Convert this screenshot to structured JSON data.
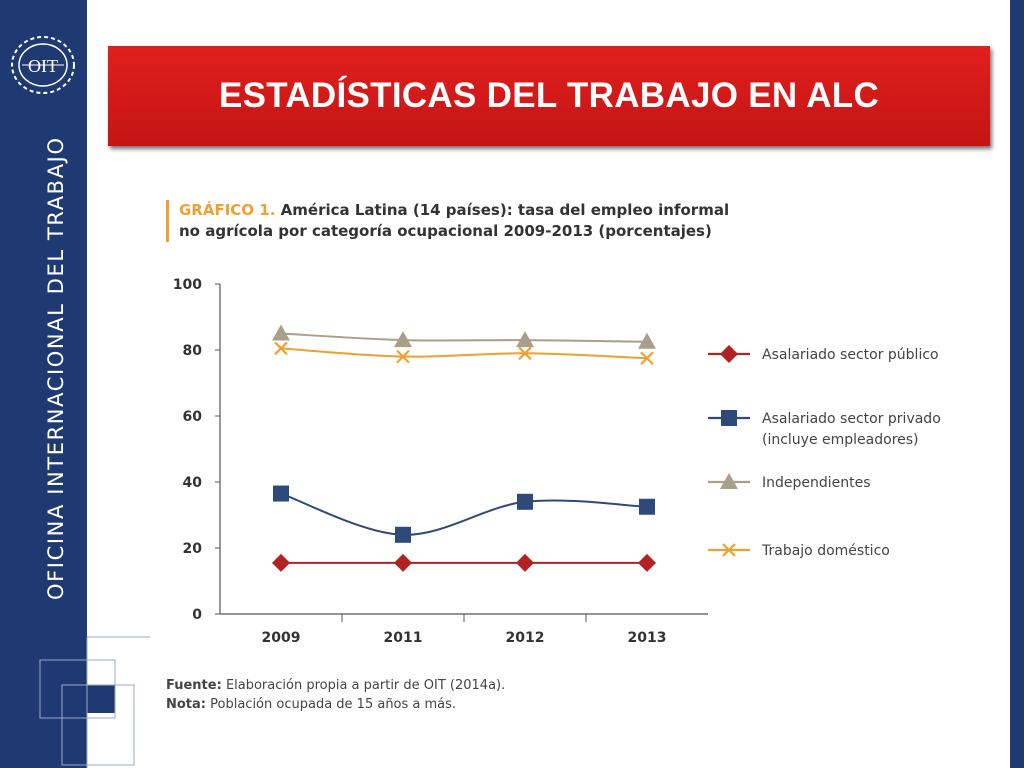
{
  "sidebar": {
    "vertical_text": "OFICINA INTERNACIONAL DEL TRABAJO",
    "logo_text": "OIT"
  },
  "colors": {
    "sidebar": "#1f3a72",
    "banner": "#d41b18",
    "accent": "#f0a030"
  },
  "title": "ESTADÍSTICAS DEL TRABAJO EN ALC",
  "chart_heading": {
    "label": "GRÁFICO 1.",
    "line1": "América Latina (14 países): tasa del empleo informal",
    "line2": "no agrícola por categoría ocupacional 2009-2013 (porcentajes)"
  },
  "footnotes": {
    "source_label": "Fuente:",
    "source_text": "Elaboración propia a partir de OIT (2014a).",
    "note_label": "Nota:",
    "note_text": "Población ocupada de 15 años a más."
  },
  "chart_data": {
    "type": "line",
    "x": [
      "2009",
      "2011",
      "2012",
      "2013"
    ],
    "ylim": [
      0,
      100
    ],
    "yticks": [
      0,
      20,
      40,
      60,
      80,
      100
    ],
    "grid": false,
    "legend_position": "right",
    "series": [
      {
        "name": "Asalariado sector público",
        "name_lines": [
          "Asalariado sector público"
        ],
        "values": [
          15.5,
          15.5,
          15.5,
          15.5
        ],
        "color": "#b22222",
        "marker": "diamond"
      },
      {
        "name": "Asalariado sector privado (incluye empleadores)",
        "name_lines": [
          "Asalariado sector privado",
          "(incluye empleadores)"
        ],
        "values": [
          36.5,
          24,
          34,
          32.5
        ],
        "color": "#2e4a7a",
        "marker": "square"
      },
      {
        "name": "Independientes",
        "name_lines": [
          "Independientes"
        ],
        "values": [
          85,
          83,
          83,
          82.5
        ],
        "color": "#a8a08a",
        "marker": "triangle"
      },
      {
        "name": "Trabajo doméstico",
        "name_lines": [
          "Trabajo doméstico"
        ],
        "values": [
          80.5,
          78,
          79,
          77.5
        ],
        "color": "#f0a030",
        "marker": "x"
      }
    ]
  }
}
